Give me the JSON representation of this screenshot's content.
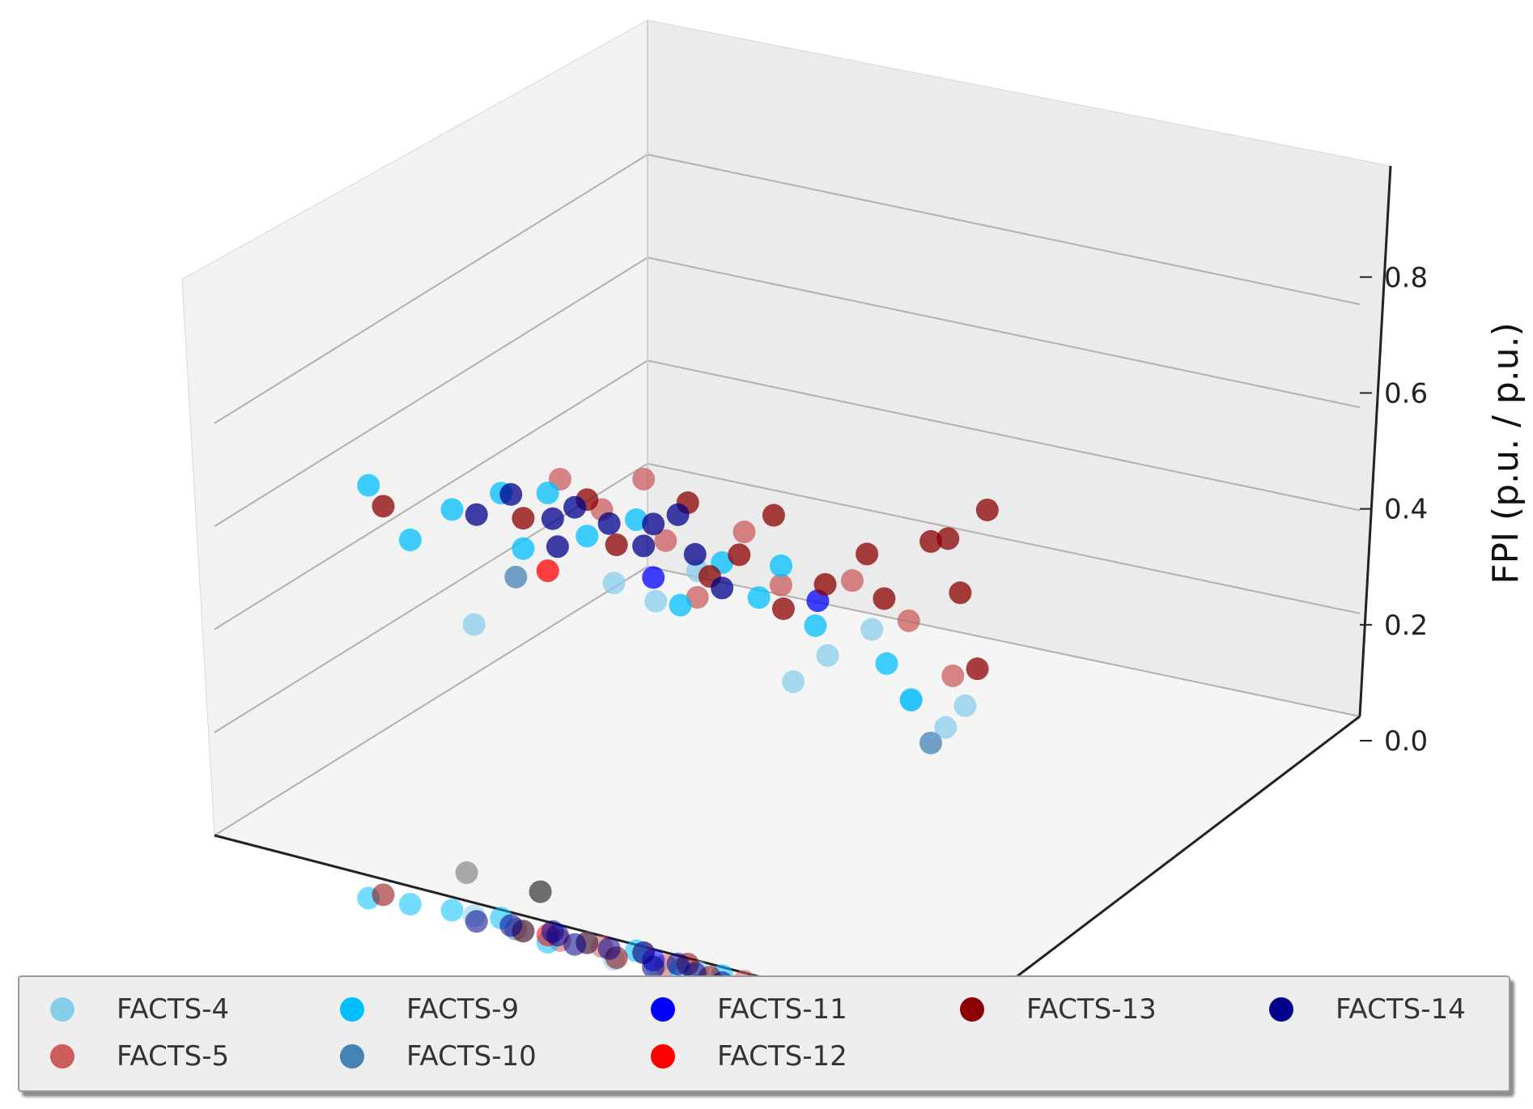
{
  "chart_data": {
    "type": "scatter",
    "projection": "3d",
    "title": "",
    "xlabel": "",
    "ylabel": "",
    "zlabel": "FPI (p.u. / p.u.)",
    "zlim": [
      -0.02,
      0.88
    ],
    "z_ticks": [
      "0.0",
      "0.2",
      "0.4",
      "0.6",
      "0.8"
    ],
    "grid": true,
    "legend_position": "bottom",
    "legend_columns": 5,
    "reference_points": [
      {
        "name": "reference-point-gray",
        "u": -0.38,
        "v": 0.4,
        "z": 0.0,
        "color": "#555555"
      },
      {
        "name": "reference-point-black",
        "u": 0.44,
        "v": 0.99,
        "z": 0.0,
        "color": "#000000"
      },
      {
        "name": "reference-point-silver",
        "u": 0.5,
        "v": 0.3,
        "z": 0.0,
        "color": "#9a9a9a"
      }
    ],
    "series": [
      {
        "name": "FACTS-4",
        "color": "#87CEEB",
        "points": [
          [
            0.93,
            0.5,
            0.54
          ],
          [
            0.95,
            0.55,
            0.52
          ],
          [
            0.97,
            0.6,
            0.58
          ],
          [
            0.94,
            0.74,
            0.45
          ],
          [
            0.96,
            0.78,
            0.5
          ],
          [
            0.99,
            0.83,
            0.55
          ],
          [
            0.97,
            0.89,
            0.46
          ],
          [
            0.99,
            0.93,
            0.42
          ],
          [
            0.95,
            0.97,
            0.48
          ],
          [
            0.96,
            0.3,
            0.4
          ]
        ]
      },
      {
        "name": "FACTS-5",
        "color": "#CD5C5C",
        "points": [
          [
            0.95,
            0.42,
            0.68
          ],
          [
            0.97,
            0.47,
            0.64
          ],
          [
            0.99,
            0.52,
            0.7
          ],
          [
            0.96,
            0.56,
            0.62
          ],
          [
            0.98,
            0.66,
            0.66
          ],
          [
            0.95,
            0.72,
            0.6
          ],
          [
            0.97,
            0.81,
            0.63
          ],
          [
            0.99,
            0.88,
            0.58
          ],
          [
            0.96,
            0.95,
            0.52
          ],
          [
            0.91,
            0.62,
            0.56
          ]
        ]
      },
      {
        "name": "FACTS-9",
        "color": "#00BFFF",
        "points": [
          [
            0.94,
            0.22,
            0.52
          ],
          [
            0.96,
            0.27,
            0.58
          ],
          [
            0.98,
            0.33,
            0.62
          ],
          [
            0.95,
            0.37,
            0.55
          ],
          [
            0.97,
            0.45,
            0.59
          ],
          [
            0.99,
            0.51,
            0.63
          ],
          [
            0.96,
            0.58,
            0.52
          ],
          [
            0.98,
            0.63,
            0.6
          ],
          [
            0.95,
            0.69,
            0.57
          ],
          [
            0.97,
            0.76,
            0.54
          ],
          [
            0.99,
            0.85,
            0.5
          ],
          [
            0.94,
            0.9,
            0.47
          ],
          [
            0.92,
            0.17,
            0.6
          ],
          [
            0.93,
            0.41,
            0.66
          ],
          [
            0.98,
            0.71,
            0.62
          ]
        ]
      },
      {
        "name": "FACTS-10",
        "color": "#4682B4",
        "points": [
          [
            0.95,
            0.36,
            0.5
          ],
          [
            0.96,
            0.92,
            0.4
          ]
        ]
      },
      {
        "name": "FACTS-11",
        "color": "#0000FF",
        "points": [
          [
            0.97,
            0.54,
            0.55
          ],
          [
            0.95,
            0.77,
            0.59
          ]
        ]
      },
      {
        "name": "FACTS-12",
        "color": "#FF0000",
        "points": [
          [
            0.96,
            0.4,
            0.52
          ]
        ]
      },
      {
        "name": "FACTS-13",
        "color": "#8B0000",
        "points": [
          [
            0.95,
            0.18,
            0.56
          ],
          [
            0.97,
            0.45,
            0.65
          ],
          [
            0.94,
            0.5,
            0.6
          ],
          [
            0.99,
            0.58,
            0.68
          ],
          [
            0.96,
            0.62,
            0.58
          ],
          [
            0.93,
            0.67,
            0.64
          ],
          [
            0.98,
            0.7,
            0.7
          ],
          [
            0.95,
            0.78,
            0.62
          ],
          [
            0.97,
            0.83,
            0.68
          ],
          [
            0.99,
            0.91,
            0.72
          ],
          [
            0.96,
            0.96,
            0.66
          ],
          [
            0.94,
            0.99,
            0.55
          ],
          [
            0.98,
            0.99,
            0.8
          ],
          [
            0.97,
            0.94,
            0.74
          ],
          [
            0.93,
            0.73,
            0.57
          ],
          [
            0.95,
            0.37,
            0.6
          ],
          [
            0.98,
            0.85,
            0.61
          ]
        ]
      },
      {
        "name": "FACTS-14",
        "color": "#00008B",
        "points": [
          [
            0.94,
            0.31,
            0.59
          ],
          [
            0.96,
            0.35,
            0.63
          ],
          [
            0.98,
            0.4,
            0.6
          ],
          [
            0.95,
            0.44,
            0.64
          ],
          [
            0.97,
            0.48,
            0.62
          ],
          [
            0.99,
            0.52,
            0.59
          ],
          [
            0.94,
            0.55,
            0.65
          ],
          [
            0.96,
            0.6,
            0.61
          ],
          [
            0.95,
            0.64,
            0.57
          ],
          [
            0.97,
            0.41,
            0.56
          ],
          [
            0.98,
            0.57,
            0.66
          ]
        ]
      }
    ]
  },
  "legend": {
    "items": [
      {
        "label": "FACTS-4",
        "color": "#87CEEB"
      },
      {
        "label": "FACTS-9",
        "color": "#00BFFF"
      },
      {
        "label": "FACTS-11",
        "color": "#0000FF"
      },
      {
        "label": "FACTS-13",
        "color": "#8B0000"
      },
      {
        "label": "FACTS-14",
        "color": "#00008B"
      },
      {
        "label": "FACTS-5",
        "color": "#CD5C5C"
      },
      {
        "label": "FACTS-10",
        "color": "#4682B4"
      },
      {
        "label": "FACTS-12",
        "color": "#FF0000"
      }
    ]
  }
}
